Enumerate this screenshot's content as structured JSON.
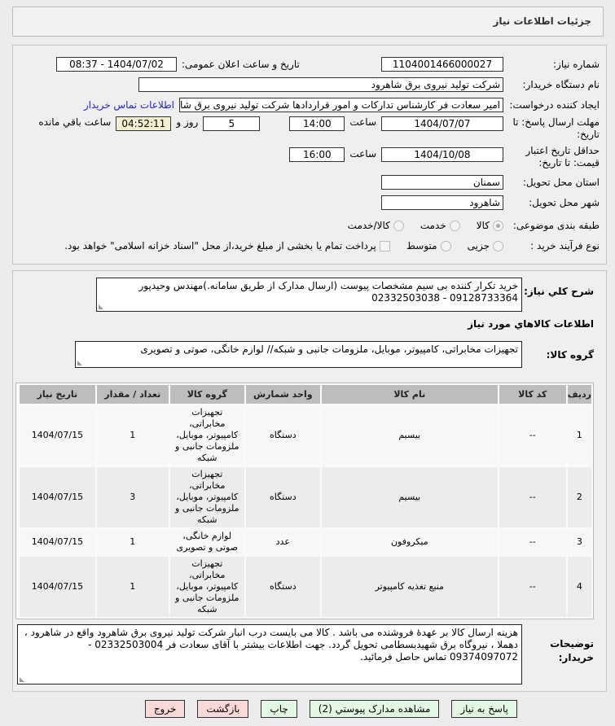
{
  "header": {
    "title": "جزئیات اطلاعات نیاز"
  },
  "watermark": "AriaTender.net",
  "form": {
    "need_number_label": "شماره نیاز:",
    "need_number": "1104001466000027",
    "announce_label": "تاریخ و ساعت اعلان عمومی:",
    "announce_value": "1404/07/02 - 08:37",
    "buyer_org_label": "نام دستگاه خریدار:",
    "buyer_org": "شرکت تولید نیروی برق شاهرود",
    "creator_label": "ایجاد کننده درخواست:",
    "creator": "امیر سعادت فر کارشناس تدارکات و امور قراردادها شرکت تولید نیروی برق شاهرود",
    "contact_link": "اطلاعات تماس خریدار",
    "deadline_label": "مهلت ارسال پاسخ: تا تاریخ:",
    "deadline_date": "1404/07/07",
    "time_label": "ساعت",
    "deadline_time": "14:00",
    "days": "5",
    "days_label": "روز و",
    "remaining": "04:52:11",
    "remaining_label": "ساعت باقي مانده",
    "validity_label": "حداقل تاریخ اعتبار قیمت: تا تاریخ:",
    "validity_date": "1404/10/08",
    "validity_time": "16:00",
    "province_label": "استان محل تحویل:",
    "province": "سمنان",
    "city_label": "شهر محل تحویل:",
    "city": "شاهرود",
    "category_label": "طبقه بندی موضوعی:",
    "category_options": [
      "کالا",
      "خدمت",
      "کالا/خدمت"
    ],
    "category_selected": "کالا",
    "process_label": "نوع فرآیند خرید :",
    "process_options": [
      "جزیی",
      "متوسط"
    ],
    "payment_note": "پرداخت تمام یا بخشی از مبلغ خرید،از محل \"اسناد خزانه اسلامی\" خواهد بود."
  },
  "summary": {
    "label": "شرح کلي نیاز:",
    "text": "خرید تکرار کننده بی سیم مشخصات پیوست (ارسال مدارک از طریق سامانه.)مهندس وحیدپور 09128733364 - 02332503038"
  },
  "goods_title": "اطلاعات کالاهاي مورد نیاز",
  "group": {
    "label": "گروه کالا:",
    "text": "تجهیزات مخابراتی، کامپیوتر، موبایل، ملزومات جانبی و شبکه// لوازم خانگی، صوتی و تصویری"
  },
  "table": {
    "headers": [
      "ردیف",
      "کد کالا",
      "نام کالا",
      "واحد شمارش",
      "گروه کالا",
      "تعداد / مقدار",
      "تاریخ نیاز"
    ],
    "rows": [
      [
        "1",
        "--",
        "بیسیم",
        "دستگاه",
        "تجهیزات مخابراتی، کامپیوتر، موبایل، ملزومات جانبی و شبکه",
        "1",
        "1404/07/15"
      ],
      [
        "2",
        "--",
        "بیسیم",
        "دستگاه",
        "تجهیزات مخابراتی، کامپیوتر، موبایل، ملزومات جانبی و شبکه",
        "3",
        "1404/07/15"
      ],
      [
        "3",
        "--",
        "میکروفون",
        "عدد",
        "لوازم خانگی، صوتی و تصویری",
        "1",
        "1404/07/15"
      ],
      [
        "4",
        "--",
        "منبع تغذیه کامپیوتر",
        "دستگاه",
        "تجهیزات مخابراتی، کامپیوتر، موبایل، ملزومات جانبی و شبکه",
        "1",
        "1404/07/15"
      ]
    ]
  },
  "notes": {
    "label": "توضیحات خریدار:",
    "text": "هزینه ارسال کالا بر عهدهٔ فروشنده می باشد . کالا می بایست درب انبار شرکت تولید نیروی برق شاهرود واقع در شاهرود ، دهملا ، نیروگاه برق شهیدبسطامی تحویل گردد. جهت اطلاعات بیشتر با آقای سعادت فر  02332503004 - 09374097072 تماس حاصل فرمائید."
  },
  "buttons": {
    "reply": "پاسخ به نیاز",
    "attachments": "مشاهده مدارک پیوستي (2)",
    "print": "چاپ",
    "back": "بازگشت",
    "exit": "خروج"
  }
}
